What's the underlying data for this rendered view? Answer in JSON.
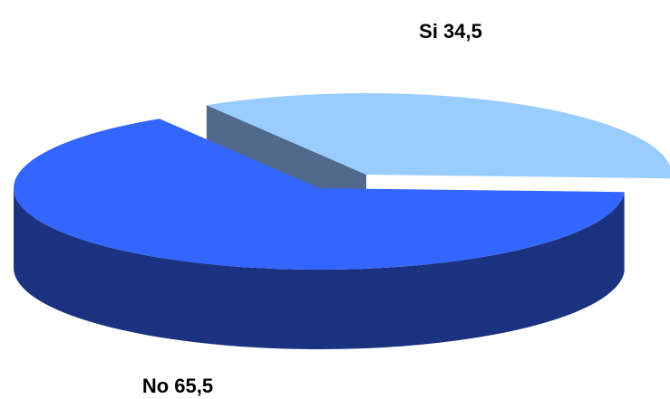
{
  "chart_data": {
    "type": "pie",
    "subtype": "3d-exploded",
    "title": "",
    "slices": [
      {
        "name": "Si",
        "value": 34.5,
        "label": "Si 34,5",
        "top_color": "#99CCFF",
        "side_color": "#51698A",
        "exploded": true
      },
      {
        "name": "No",
        "value": 65.5,
        "label": "No 65,5",
        "top_color": "#3366FF",
        "side_color": "#1B3280",
        "exploded": false
      }
    ],
    "legend": "none"
  }
}
